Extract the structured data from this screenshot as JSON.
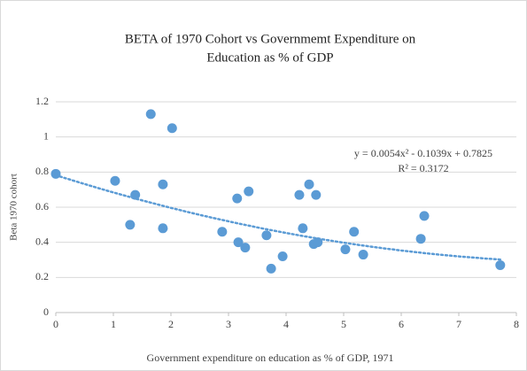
{
  "chart_data": {
    "type": "scatter",
    "title": [
      "BETA of 1970 Cohort vs Governmemt Expenditure on",
      "Education as % of GDP"
    ],
    "x_label": "Government expenditure on education as % of GDP, 1971",
    "y_label": "Beta 1970 cohort",
    "color": "#5b9bd5",
    "x": [
      0,
      1.03,
      1.38,
      1.29,
      1.65,
      1.86,
      1.86,
      2.02,
      2.89,
      3.15,
      3.17,
      3.29,
      3.35,
      3.66,
      3.74,
      3.94,
      4.23,
      4.29,
      4.4,
      4.48,
      4.52,
      4.55,
      5.03,
      5.18,
      5.34,
      6.34,
      6.4,
      7.72
    ],
    "values": [
      0.79,
      0.75,
      0.67,
      0.5,
      1.13,
      0.73,
      0.48,
      1.05,
      0.46,
      0.65,
      0.4,
      0.37,
      0.69,
      0.44,
      0.25,
      0.32,
      0.67,
      0.48,
      0.73,
      0.39,
      0.67,
      0.4,
      0.36,
      0.46,
      0.33,
      0.42,
      0.55,
      0.27
    ],
    "xlim": [
      0,
      8
    ],
    "xticks": [
      0,
      1,
      2,
      3,
      4,
      5,
      6,
      7,
      8
    ],
    "ylim": [
      0,
      1.2
    ],
    "yticks": [
      0,
      0.2,
      0.4,
      0.6,
      0.8,
      1,
      1.2
    ],
    "grid": true,
    "trendline": {
      "coefficients": [
        0.0054,
        -0.1039,
        0.7825
      ],
      "equation": "y = 0.0054x² - 0.1039x + 0.7825",
      "r_squared": "R² = 0.3172"
    }
  }
}
